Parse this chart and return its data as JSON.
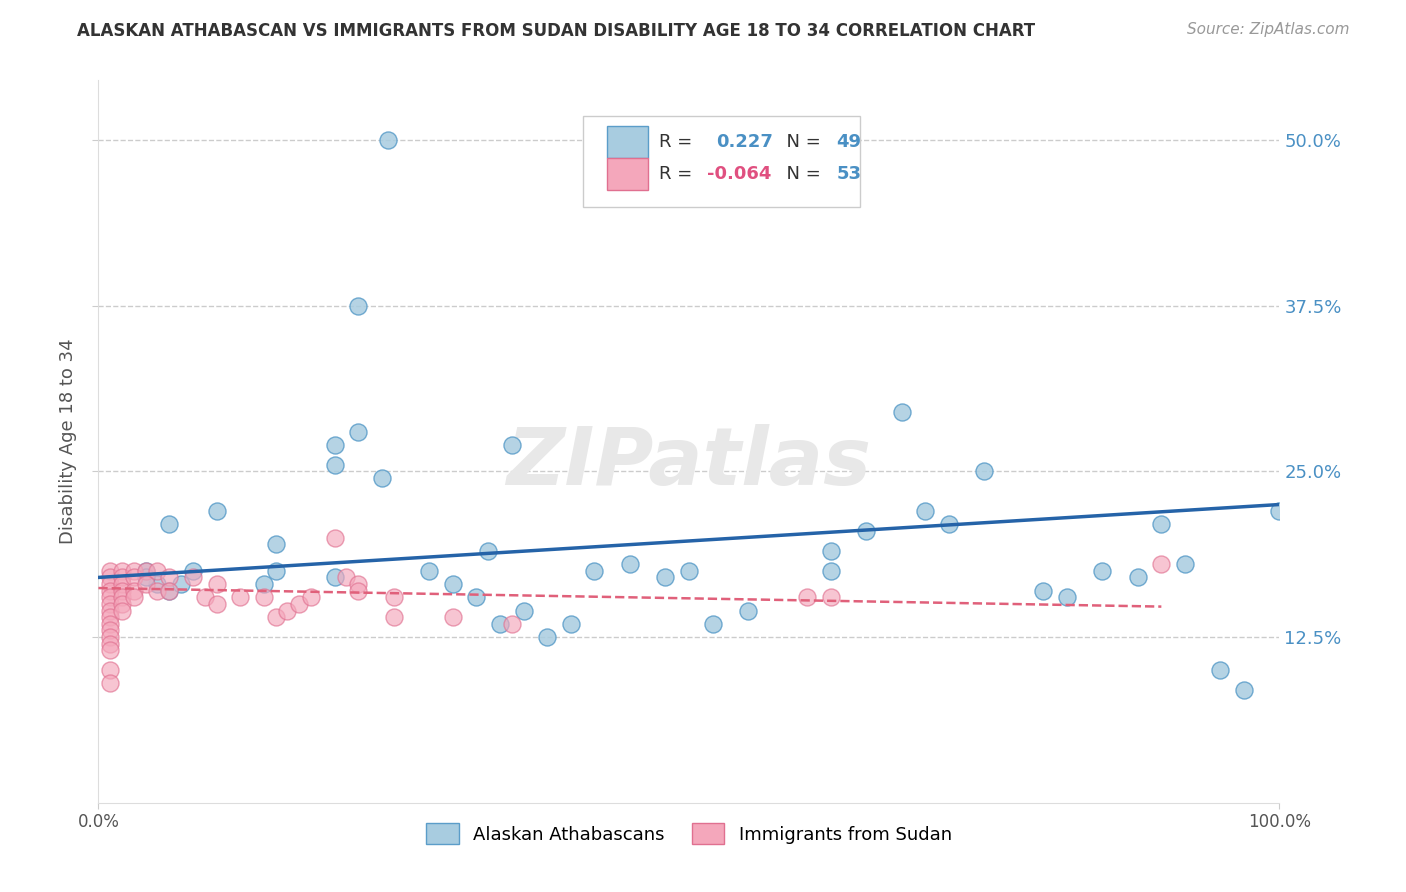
{
  "title": "ALASKAN ATHABASCAN VS IMMIGRANTS FROM SUDAN DISABILITY AGE 18 TO 34 CORRELATION CHART",
  "source": "Source: ZipAtlas.com",
  "ylabel": "Disability Age 18 to 34",
  "xlim": [
    0.0,
    1.0
  ],
  "ylim": [
    0.0,
    0.545
  ],
  "xtick_positions": [
    0.0,
    1.0
  ],
  "xtick_labels": [
    "0.0%",
    "100.0%"
  ],
  "ytick_values": [
    0.125,
    0.25,
    0.375,
    0.5
  ],
  "ytick_labels": [
    "12.5%",
    "25.0%",
    "37.5%",
    "50.0%"
  ],
  "color_blue": "#a8cce0",
  "color_pink": "#f4a7bb",
  "edge_blue": "#5b9dc9",
  "edge_pink": "#e07090",
  "line_color_blue": "#2563a8",
  "line_color_pink": "#e0607a",
  "background": "#ffffff",
  "grid_color": "#cccccc",
  "blue_points_x": [
    0.245,
    0.22,
    0.2,
    0.2,
    0.06,
    0.04,
    0.05,
    0.06,
    0.07,
    0.08,
    0.14,
    0.15,
    0.15,
    0.2,
    0.22,
    0.33,
    0.35,
    0.62,
    0.65,
    0.68,
    0.7,
    0.72,
    0.75,
    0.8,
    0.82,
    0.85,
    0.88,
    0.9,
    0.92,
    0.95,
    0.97,
    1.0,
    0.42,
    0.52,
    0.55,
    0.1,
    0.28,
    0.3,
    0.32,
    0.34,
    0.36,
    0.38,
    0.4,
    0.45,
    0.48,
    0.5,
    0.62,
    0.04,
    0.24
  ],
  "blue_points_y": [
    0.5,
    0.375,
    0.27,
    0.255,
    0.21,
    0.175,
    0.165,
    0.16,
    0.165,
    0.175,
    0.165,
    0.195,
    0.175,
    0.17,
    0.28,
    0.19,
    0.27,
    0.19,
    0.205,
    0.295,
    0.22,
    0.21,
    0.25,
    0.16,
    0.155,
    0.175,
    0.17,
    0.21,
    0.18,
    0.1,
    0.085,
    0.22,
    0.175,
    0.135,
    0.145,
    0.22,
    0.175,
    0.165,
    0.155,
    0.135,
    0.145,
    0.125,
    0.135,
    0.18,
    0.17,
    0.175,
    0.175,
    0.17,
    0.245
  ],
  "pink_points_x": [
    0.01,
    0.01,
    0.01,
    0.01,
    0.01,
    0.01,
    0.01,
    0.01,
    0.01,
    0.01,
    0.01,
    0.01,
    0.01,
    0.01,
    0.01,
    0.02,
    0.02,
    0.02,
    0.02,
    0.02,
    0.02,
    0.02,
    0.03,
    0.03,
    0.03,
    0.03,
    0.04,
    0.04,
    0.05,
    0.05,
    0.06,
    0.06,
    0.08,
    0.09,
    0.1,
    0.1,
    0.12,
    0.14,
    0.15,
    0.16,
    0.17,
    0.18,
    0.2,
    0.21,
    0.22,
    0.22,
    0.25,
    0.25,
    0.3,
    0.35,
    0.6,
    0.62,
    0.9
  ],
  "pink_points_y": [
    0.175,
    0.17,
    0.165,
    0.16,
    0.155,
    0.15,
    0.145,
    0.14,
    0.135,
    0.13,
    0.125,
    0.12,
    0.115,
    0.1,
    0.09,
    0.175,
    0.17,
    0.165,
    0.16,
    0.155,
    0.15,
    0.145,
    0.175,
    0.17,
    0.16,
    0.155,
    0.175,
    0.165,
    0.175,
    0.16,
    0.17,
    0.16,
    0.17,
    0.155,
    0.165,
    0.15,
    0.155,
    0.155,
    0.14,
    0.145,
    0.15,
    0.155,
    0.2,
    0.17,
    0.165,
    0.16,
    0.155,
    0.14,
    0.14,
    0.135,
    0.155,
    0.155,
    0.18
  ],
  "blue_line_x": [
    0.0,
    1.0
  ],
  "blue_line_y": [
    0.17,
    0.225
  ],
  "pink_line_x": [
    0.0,
    0.9
  ],
  "pink_line_y": [
    0.162,
    0.148
  ]
}
